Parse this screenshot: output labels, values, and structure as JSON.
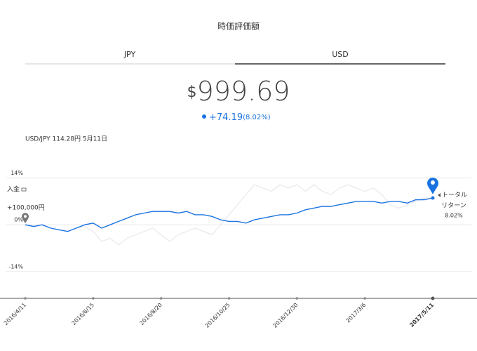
{
  "header": {
    "title": "時価評価額"
  },
  "tabs": [
    "JPY",
    "USD"
  ],
  "active_tab": 1,
  "balance": {
    "currency": "$",
    "amount": "999.69",
    "change": "+74.19",
    "change_pct": "(8.02%)"
  },
  "fx_note": "USD/JPY 114.28円 5月11日",
  "chart_data": {
    "type": "line",
    "categories": [
      "2016/4/11",
      null,
      null,
      null,
      null,
      null,
      null,
      null,
      "2016/6/15",
      null,
      null,
      null,
      null,
      null,
      null,
      null,
      "2016/8/20",
      null,
      null,
      null,
      null,
      null,
      null,
      null,
      "2016/10/25",
      null,
      null,
      null,
      null,
      null,
      null,
      null,
      "2016/12/30",
      null,
      null,
      null,
      null,
      null,
      null,
      null,
      "2017/3/6",
      null,
      null,
      null,
      null,
      null,
      null,
      null,
      "2017/5/11"
    ],
    "series": [
      {
        "color": "#e3e6ec",
        "values": [
          0,
          -0.5,
          0,
          -1,
          -1.5,
          -2,
          -1,
          -0.5,
          -2,
          -5,
          -4,
          -6,
          -4,
          -3,
          -2,
          -1,
          -3,
          -5,
          -3,
          -2,
          -1,
          -2,
          -3,
          0,
          3,
          6,
          9,
          12,
          11,
          10,
          12,
          11,
          12,
          10,
          12,
          10,
          9,
          11,
          12,
          11,
          10,
          11,
          9,
          6,
          5,
          6,
          7,
          8,
          8
        ]
      },
      {
        "color": "#1a73e0",
        "values": [
          0,
          -0.5,
          0,
          -1,
          -1.5,
          -2,
          -1,
          0,
          0.5,
          -1,
          0,
          1,
          2,
          3,
          3.5,
          4,
          4,
          4,
          3.5,
          4,
          3,
          3,
          2.5,
          1.5,
          1,
          1,
          0.5,
          1.5,
          2,
          2.5,
          3,
          3,
          3.5,
          4.5,
          5,
          5.5,
          5.5,
          6,
          6.5,
          7,
          7,
          7,
          6.5,
          7,
          7,
          6.5,
          7.5,
          7.5,
          8.02
        ]
      }
    ],
    "ylim": [
      -22,
      16
    ],
    "yticks": [
      {
        "value": 14,
        "label": "14%"
      },
      {
        "value": 0,
        "label": "0%"
      },
      {
        "value": -14,
        "label": "-14%"
      }
    ],
    "grid": true,
    "annotations": {
      "deposit_label": "入金",
      "deposit_amount": "+100,000円",
      "return_label_1": "トータル",
      "return_label_2": "リターン",
      "return_value": "8.02%"
    }
  }
}
